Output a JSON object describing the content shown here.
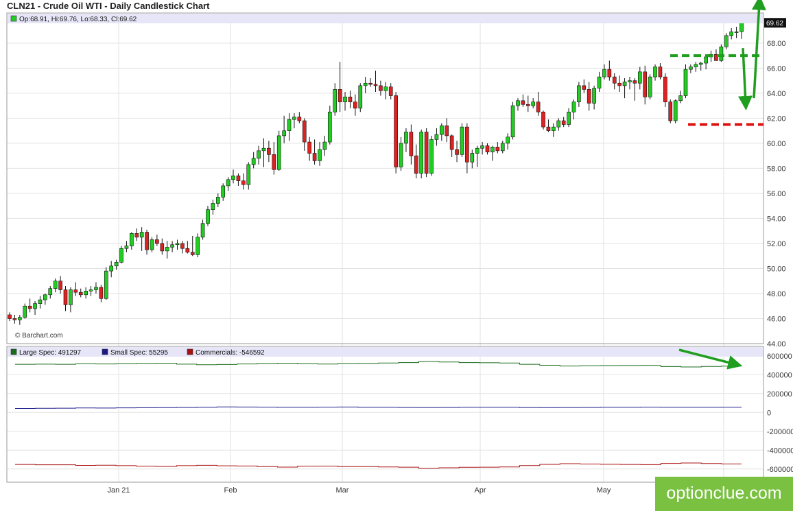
{
  "title": "CLN21 - Crude Oil WTI - Daily Candlestick Chart",
  "watermark": "© Barchart.com",
  "brand": "optionclue.com",
  "ohlc_legend": {
    "text": "Op:68.91, Hi:69.76, Lo:68.33, Cl:69.62",
    "color": "#22cc22"
  },
  "last_price_label": "69.62",
  "colors": {
    "up": "#22cc22",
    "down": "#dd2222",
    "grid": "#e2e2e2",
    "legend_band": "#e6e6f8",
    "annotation_green": "#1f9e1f",
    "annotation_red": "#dd1111"
  },
  "chart_data": [
    {
      "type": "candlestick",
      "title": "CLN21 - Crude Oil WTI - Daily Candlestick Chart",
      "ylim": [
        44,
        70.4
      ],
      "y_ticks": [
        "44.00",
        "46.00",
        "48.00",
        "50.00",
        "52.00",
        "54.00",
        "56.00",
        "58.00",
        "60.00",
        "62.00",
        "64.00",
        "66.00",
        "68.00"
      ],
      "x_ticks": [
        "Jan 21",
        "Feb",
        "Mar",
        "Apr",
        "May"
      ],
      "grid": true,
      "candles": [
        [
          46.3,
          46.5,
          45.8,
          46.0
        ],
        [
          46.0,
          46.3,
          45.6,
          45.9
        ],
        [
          45.9,
          46.3,
          45.5,
          46.1
        ],
        [
          46.1,
          47.2,
          46.0,
          47.0
        ],
        [
          47.0,
          47.6,
          46.5,
          46.8
        ],
        [
          46.8,
          47.4,
          46.3,
          47.2
        ],
        [
          47.2,
          47.8,
          46.8,
          47.5
        ],
        [
          47.5,
          48.0,
          47.1,
          47.9
        ],
        [
          47.9,
          48.6,
          47.6,
          48.4
        ],
        [
          48.4,
          49.2,
          48.1,
          49.0
        ],
        [
          49.0,
          49.4,
          48.0,
          48.3
        ],
        [
          48.3,
          48.6,
          46.6,
          47.1
        ],
        [
          47.1,
          48.5,
          46.5,
          48.3
        ],
        [
          48.3,
          48.9,
          47.8,
          48.1
        ],
        [
          48.1,
          48.4,
          47.7,
          47.9
        ],
        [
          47.9,
          48.5,
          47.6,
          48.2
        ],
        [
          48.2,
          48.6,
          47.8,
          48.3
        ],
        [
          48.3,
          48.9,
          48.0,
          48.5
        ],
        [
          48.5,
          48.7,
          47.3,
          47.6
        ],
        [
          47.6,
          50.1,
          47.5,
          49.8
        ],
        [
          49.8,
          50.6,
          49.3,
          50.2
        ],
        [
          50.2,
          50.7,
          49.9,
          50.5
        ],
        [
          50.5,
          51.8,
          50.4,
          51.6
        ],
        [
          51.6,
          52.2,
          51.3,
          51.8
        ],
        [
          51.8,
          52.9,
          51.5,
          52.8
        ],
        [
          52.8,
          53.2,
          52.2,
          52.5
        ],
        [
          52.5,
          53.3,
          51.4,
          52.9
        ],
        [
          52.9,
          53.1,
          51.1,
          51.5
        ],
        [
          51.5,
          52.5,
          51.3,
          52.3
        ],
        [
          52.3,
          52.7,
          51.8,
          52.0
        ],
        [
          52.0,
          52.4,
          51.1,
          51.4
        ],
        [
          51.4,
          52.2,
          50.8,
          51.7
        ],
        [
          51.7,
          52.2,
          51.3,
          51.9
        ],
        [
          51.9,
          52.3,
          51.5,
          52.0
        ],
        [
          52.0,
          52.2,
          51.2,
          51.6
        ],
        [
          51.6,
          52.2,
          51.2,
          51.3
        ],
        [
          51.3,
          52.6,
          51.0,
          51.1
        ],
        [
          51.1,
          52.8,
          50.9,
          52.5
        ],
        [
          52.5,
          53.9,
          52.3,
          53.6
        ],
        [
          53.6,
          55.0,
          53.4,
          54.7
        ],
        [
          54.7,
          55.5,
          54.3,
          55.2
        ],
        [
          55.2,
          56.0,
          54.9,
          55.7
        ],
        [
          55.7,
          56.8,
          55.4,
          56.6
        ],
        [
          56.6,
          57.3,
          56.2,
          57.1
        ],
        [
          57.1,
          57.9,
          56.8,
          57.4
        ],
        [
          57.4,
          57.6,
          56.6,
          57.0
        ],
        [
          57.0,
          57.6,
          56.3,
          56.7
        ],
        [
          56.7,
          58.5,
          56.3,
          58.3
        ],
        [
          58.3,
          59.3,
          58.0,
          58.8
        ],
        [
          58.8,
          59.8,
          58.3,
          59.4
        ],
        [
          59.4,
          60.4,
          58.1,
          59.6
        ],
        [
          59.6,
          60.2,
          58.5,
          59.1
        ],
        [
          59.1,
          60.1,
          57.5,
          57.9
        ],
        [
          57.9,
          61.0,
          57.8,
          60.6
        ],
        [
          60.6,
          62.2,
          60.0,
          61.0
        ],
        [
          61.0,
          62.4,
          60.2,
          61.9
        ],
        [
          61.9,
          62.4,
          61.2,
          62.1
        ],
        [
          62.1,
          62.5,
          61.6,
          61.8
        ],
        [
          61.8,
          62.0,
          59.4,
          60.1
        ],
        [
          60.1,
          60.5,
          58.6,
          59.2
        ],
        [
          59.2,
          60.3,
          58.3,
          58.6
        ],
        [
          58.6,
          60.1,
          58.2,
          59.5
        ],
        [
          59.5,
          60.6,
          59.0,
          60.1
        ],
        [
          60.1,
          63.0,
          59.9,
          62.5
        ],
        [
          62.5,
          64.8,
          62.2,
          64.3
        ],
        [
          64.3,
          66.5,
          62.5,
          63.3
        ],
        [
          63.3,
          64.1,
          62.6,
          63.7
        ],
        [
          63.7,
          64.2,
          62.8,
          63.3
        ],
        [
          63.3,
          63.9,
          62.2,
          62.8
        ],
        [
          62.8,
          64.8,
          62.5,
          64.6
        ],
        [
          64.6,
          65.3,
          64.0,
          64.8
        ],
        [
          64.8,
          65.2,
          64.5,
          64.7
        ],
        [
          64.7,
          65.8,
          64.1,
          64.6
        ],
        [
          64.6,
          65.0,
          63.8,
          64.2
        ],
        [
          64.2,
          64.9,
          63.5,
          64.5
        ],
        [
          64.5,
          64.8,
          63.5,
          63.8
        ],
        [
          63.8,
          64.1,
          57.6,
          58.1
        ],
        [
          58.1,
          60.5,
          57.8,
          60.0
        ],
        [
          60.0,
          61.2,
          59.3,
          60.9
        ],
        [
          60.9,
          61.5,
          58.3,
          59.0
        ],
        [
          59.0,
          59.9,
          57.2,
          57.6
        ],
        [
          57.6,
          61.1,
          57.2,
          60.9
        ],
        [
          60.9,
          61.2,
          57.3,
          57.6
        ],
        [
          57.6,
          60.6,
          57.4,
          60.3
        ],
        [
          60.3,
          61.2,
          59.8,
          60.7
        ],
        [
          60.7,
          61.6,
          60.2,
          61.4
        ],
        [
          61.4,
          62.0,
          60.1,
          60.6
        ],
        [
          60.6,
          60.7,
          58.9,
          59.5
        ],
        [
          59.5,
          60.2,
          58.5,
          59.1
        ],
        [
          59.1,
          61.6,
          58.9,
          61.3
        ],
        [
          61.3,
          61.6,
          57.6,
          58.5
        ],
        [
          58.5,
          59.5,
          58.0,
          59.2
        ],
        [
          59.2,
          59.8,
          58.1,
          59.6
        ],
        [
          59.6,
          60.1,
          59.1,
          59.8
        ],
        [
          59.8,
          60.0,
          59.1,
          59.3
        ],
        [
          59.3,
          59.8,
          58.6,
          59.7
        ],
        [
          59.7,
          60.1,
          59.2,
          59.4
        ],
        [
          59.4,
          60.2,
          59.2,
          60.0
        ],
        [
          60.0,
          60.8,
          59.5,
          60.5
        ],
        [
          60.5,
          63.3,
          60.3,
          63.0
        ],
        [
          63.0,
          63.6,
          62.6,
          63.4
        ],
        [
          63.4,
          63.9,
          62.9,
          63.1
        ],
        [
          63.1,
          63.8,
          62.5,
          63.0
        ],
        [
          63.0,
          63.6,
          62.8,
          63.3
        ],
        [
          63.3,
          64.1,
          62.2,
          62.5
        ],
        [
          62.5,
          62.6,
          61.1,
          61.3
        ],
        [
          61.3,
          61.9,
          60.9,
          61.0
        ],
        [
          61.0,
          61.6,
          60.5,
          61.3
        ],
        [
          61.3,
          62.0,
          61.0,
          61.8
        ],
        [
          61.8,
          62.1,
          61.3,
          61.5
        ],
        [
          61.5,
          62.8,
          61.3,
          62.5
        ],
        [
          62.5,
          63.5,
          61.9,
          63.3
        ],
        [
          63.3,
          64.9,
          62.9,
          64.6
        ],
        [
          64.6,
          65.1,
          64.0,
          64.3
        ],
        [
          64.3,
          64.9,
          62.6,
          63.2
        ],
        [
          63.2,
          64.6,
          62.7,
          64.4
        ],
        [
          64.4,
          65.7,
          64.1,
          65.3
        ],
        [
          65.3,
          66.3,
          65.1,
          65.9
        ],
        [
          65.9,
          66.6,
          65.0,
          65.3
        ],
        [
          65.3,
          65.6,
          64.3,
          64.8
        ],
        [
          64.8,
          65.4,
          64.1,
          64.6
        ],
        [
          64.6,
          65.2,
          63.6,
          64.9
        ],
        [
          64.9,
          65.3,
          64.3,
          65.0
        ],
        [
          65.0,
          65.2,
          63.4,
          64.8
        ],
        [
          64.8,
          66.1,
          64.3,
          65.7
        ],
        [
          65.7,
          66.2,
          63.1,
          63.7
        ],
        [
          63.7,
          65.5,
          63.5,
          65.3
        ],
        [
          65.3,
          66.3,
          65.0,
          66.1
        ],
        [
          66.1,
          66.4,
          65.1,
          65.3
        ],
        [
          65.3,
          65.6,
          62.9,
          63.3
        ],
        [
          63.3,
          63.5,
          61.6,
          61.8
        ],
        [
          61.8,
          63.5,
          61.6,
          63.4
        ],
        [
          63.4,
          64.2,
          63.2,
          63.8
        ],
        [
          63.8,
          66.3,
          63.6,
          65.9
        ],
        [
          65.9,
          66.3,
          65.6,
          66.1
        ],
        [
          66.1,
          66.5,
          65.7,
          66.3
        ],
        [
          66.3,
          66.5,
          65.8,
          66.4
        ],
        [
          66.4,
          67.0,
          65.9,
          66.9
        ],
        [
          66.9,
          67.4,
          66.5,
          67.1
        ],
        [
          67.1,
          67.5,
          66.6,
          66.6
        ],
        [
          66.6,
          67.9,
          66.5,
          67.7
        ],
        [
          67.7,
          68.8,
          67.5,
          68.6
        ],
        [
          68.6,
          69.2,
          68.3,
          68.9
        ],
        [
          68.9,
          69.3,
          68.4,
          68.9
        ],
        [
          68.91,
          69.76,
          68.33,
          69.62
        ]
      ]
    },
    {
      "type": "line",
      "ylim": [
        -740000,
        700000
      ],
      "y_ticks": [
        "600000",
        "400000",
        "200000",
        "0",
        "-200000",
        "-400000",
        "-600000"
      ],
      "series": [
        {
          "name": "Large Spec: 491297",
          "color": "#1a6b1a",
          "values": [
            510000,
            512000,
            510000,
            515000,
            514000,
            517000,
            520000,
            522000,
            512000,
            506000,
            508000,
            514000,
            518000,
            522000,
            516000,
            513000,
            518000,
            520000,
            524000,
            528000,
            540000,
            534000,
            528000,
            526000,
            524000,
            510000,
            500000,
            492000,
            494000,
            496000,
            497000,
            498000,
            486000,
            482000,
            487000,
            491297
          ]
        },
        {
          "name": "Small Spec: 55295",
          "color": "#1a1a8a",
          "values": [
            42000,
            43000,
            45000,
            47000,
            46000,
            48000,
            50000,
            51000,
            53000,
            55000,
            58000,
            57000,
            56000,
            55000,
            54000,
            56000,
            57000,
            55000,
            54000,
            53000,
            52000,
            53000,
            54000,
            55000,
            54000,
            52000,
            51000,
            52000,
            53000,
            54000,
            55000,
            56000,
            55000,
            54000,
            55000,
            55295
          ]
        },
        {
          "name": "Commercials: -546592",
          "color": "#aa1111",
          "values": [
            -552000,
            -555000,
            -555000,
            -562000,
            -560000,
            -565000,
            -570000,
            -573000,
            -565000,
            -561000,
            -566000,
            -568000,
            -574000,
            -580000,
            -570000,
            -569000,
            -575000,
            -575000,
            -578000,
            -581000,
            -592000,
            -587000,
            -582000,
            -581000,
            -578000,
            -564000,
            -551000,
            -544000,
            -547000,
            -550000,
            -552000,
            -554000,
            -541000,
            -536000,
            -542000,
            -546592
          ]
        }
      ]
    }
  ]
}
